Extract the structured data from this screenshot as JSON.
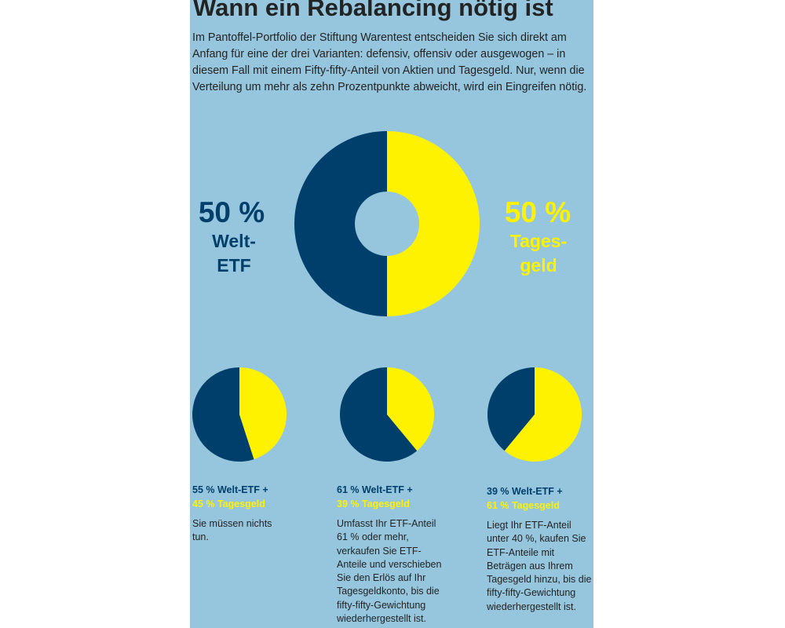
{
  "title": "Wann ein Rebalancing nötig ist",
  "intro": "Im Pantoffel-Portfolio der Stiftung Warentest entscheiden Sie sich direkt am Anfang für eine der drei Varianten: defensiv, offensiv oder ausgewogen – in diesem Fall mit einem Fifty-fifty-Anteil von Aktien und Tagesgeld. Nur, wenn die Verteilung um mehr als zehn Prozentpunkte abweicht, wird ein Eingreifen nötig.",
  "colors": {
    "background": "#95c6de",
    "navy": "#003f6b",
    "yellow": "#fff200",
    "text": "#232323"
  },
  "main": {
    "left_pct": "50 %",
    "left_label": [
      "Welt-",
      "ETF"
    ],
    "right_pct": "50 %",
    "right_label": [
      "Tages-",
      "geld"
    ]
  },
  "scenarios": [
    {
      "caption_etf": "55 % Welt-ETF +",
      "caption_cash": "45 % Tagesgeld",
      "description": "Sie müssen nichts tun."
    },
    {
      "caption_etf": "61 % Welt-ETF +",
      "caption_cash": "39 % Tagesgeld",
      "description": "Umfasst Ihr ETF-Anteil 61 % oder mehr, verkaufen Sie ETF-Anteile und verschieben Sie den Erlös auf Ihr Tagesgeldkonto, bis die fifty-fifty-Gewichtung wiederhergestellt ist."
    },
    {
      "caption_etf": "39 % Welt-ETF +",
      "caption_cash": "61 % Tagesgeld",
      "description": "Liegt Ihr ETF-Anteil unter 40 %, kaufen Sie ETF-Anteile mit Beträgen aus Ihrem Tagesgeld hinzu, bis die fifty-fifty-Gewichtung wiederhergestellt ist."
    }
  ],
  "chart_data": [
    {
      "type": "pie",
      "labels": [
        "Welt-ETF",
        "Tagesgeld"
      ],
      "values": [
        50,
        50
      ],
      "donut": true
    },
    {
      "type": "pie",
      "labels": [
        "Welt-ETF",
        "Tagesgeld"
      ],
      "values": [
        55,
        45
      ]
    },
    {
      "type": "pie",
      "labels": [
        "Welt-ETF",
        "Tagesgeld"
      ],
      "values": [
        61,
        39
      ]
    },
    {
      "type": "pie",
      "labels": [
        "Welt-ETF",
        "Tagesgeld"
      ],
      "values": [
        39,
        61
      ]
    }
  ]
}
